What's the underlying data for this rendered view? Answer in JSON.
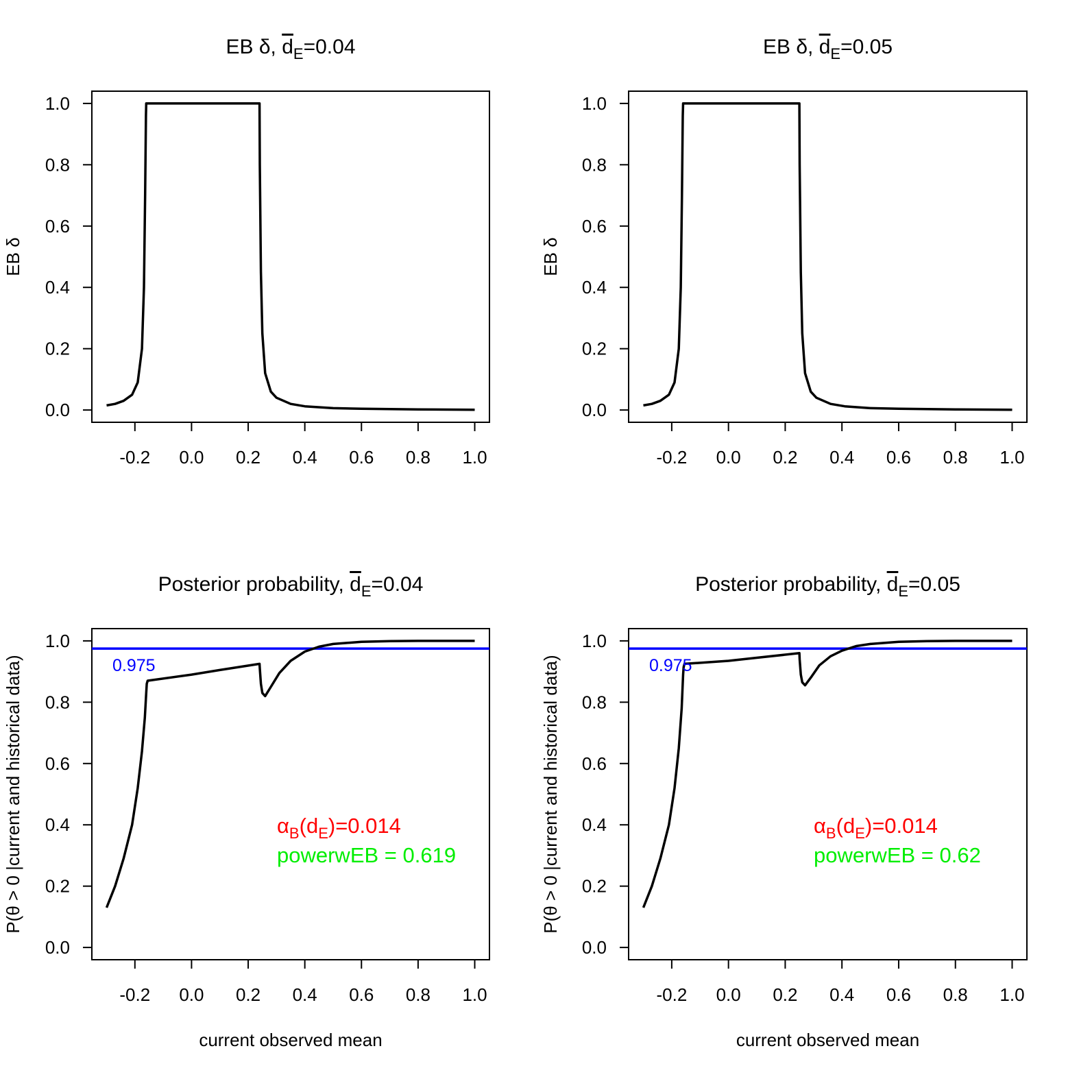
{
  "colors": {
    "curve": "#000000",
    "threshold": "#0000ff",
    "alpha_text": "#ff0000",
    "power_text": "#00ee00"
  },
  "chart_data": [
    {
      "type": "line",
      "title": {
        "prefix": "EB δ, ",
        "dbar": "d",
        "sub": "E",
        "suffix": "=0.04"
      },
      "xlabel": "",
      "ylabel": "EB δ",
      "xlim": [
        -0.3,
        1.0
      ],
      "ylim": [
        0,
        1
      ],
      "xticks": [
        -0.2,
        0.0,
        0.2,
        0.4,
        0.6,
        0.8,
        1.0
      ],
      "xtick_labels": [
        "-0.2",
        "0.0",
        "0.2",
        "0.4",
        "0.6",
        "0.8",
        "1.0"
      ],
      "yticks": [
        0.0,
        0.2,
        0.4,
        0.6,
        0.8,
        1.0
      ],
      "ytick_labels": [
        "0.0",
        "0.2",
        "0.4",
        "0.6",
        "0.8",
        "1.0"
      ],
      "x": [
        -0.3,
        -0.27,
        -0.24,
        -0.21,
        -0.19,
        -0.175,
        -0.168,
        -0.164,
        -0.161,
        -0.16,
        0.24,
        0.241,
        0.245,
        0.25,
        0.26,
        0.28,
        0.3,
        0.35,
        0.4,
        0.5,
        0.6,
        0.8,
        1.0
      ],
      "y": [
        0.015,
        0.02,
        0.03,
        0.05,
        0.09,
        0.2,
        0.4,
        0.7,
        0.96,
        1.0,
        1.0,
        0.8,
        0.45,
        0.25,
        0.12,
        0.06,
        0.04,
        0.02,
        0.012,
        0.006,
        0.004,
        0.002,
        0.001
      ]
    },
    {
      "type": "line",
      "title": {
        "prefix": "EB δ, ",
        "dbar": "d",
        "sub": "E",
        "suffix": "=0.05"
      },
      "xlabel": "",
      "ylabel": "EB δ",
      "xlim": [
        -0.3,
        1.0
      ],
      "ylim": [
        0,
        1
      ],
      "xticks": [
        -0.2,
        0.0,
        0.2,
        0.4,
        0.6,
        0.8,
        1.0
      ],
      "xtick_labels": [
        "-0.2",
        "0.0",
        "0.2",
        "0.4",
        "0.6",
        "0.8",
        "1.0"
      ],
      "yticks": [
        0.0,
        0.2,
        0.4,
        0.6,
        0.8,
        1.0
      ],
      "ytick_labels": [
        "0.0",
        "0.2",
        "0.4",
        "0.6",
        "0.8",
        "1.0"
      ],
      "x": [
        -0.3,
        -0.27,
        -0.24,
        -0.21,
        -0.19,
        -0.175,
        -0.168,
        -0.164,
        -0.161,
        -0.16,
        0.25,
        0.251,
        0.255,
        0.26,
        0.27,
        0.29,
        0.31,
        0.36,
        0.41,
        0.5,
        0.6,
        0.8,
        1.0
      ],
      "y": [
        0.015,
        0.02,
        0.03,
        0.05,
        0.09,
        0.2,
        0.4,
        0.7,
        0.96,
        1.0,
        1.0,
        0.8,
        0.45,
        0.25,
        0.12,
        0.06,
        0.04,
        0.02,
        0.012,
        0.006,
        0.004,
        0.002,
        0.001
      ]
    },
    {
      "type": "line",
      "title": {
        "prefix": "Posterior probability, ",
        "dbar": "d",
        "sub": "E",
        "suffix": "=0.04"
      },
      "xlabel": "current observed mean",
      "ylabel": "P(θ > 0 |current and historical data)",
      "xlim": [
        -0.3,
        1.0
      ],
      "ylim": [
        0,
        1
      ],
      "xticks": [
        -0.2,
        0.0,
        0.2,
        0.4,
        0.6,
        0.8,
        1.0
      ],
      "xtick_labels": [
        "-0.2",
        "0.0",
        "0.2",
        "0.4",
        "0.6",
        "0.8",
        "1.0"
      ],
      "yticks": [
        0.0,
        0.2,
        0.4,
        0.6,
        0.8,
        1.0
      ],
      "ytick_labels": [
        "0.0",
        "0.2",
        "0.4",
        "0.6",
        "0.8",
        "1.0"
      ],
      "x": [
        -0.3,
        -0.27,
        -0.24,
        -0.21,
        -0.19,
        -0.175,
        -0.165,
        -0.16,
        -0.158,
        -0.155,
        0.0,
        0.1,
        0.24,
        0.241,
        0.245,
        0.25,
        0.26,
        0.28,
        0.31,
        0.35,
        0.4,
        0.45,
        0.5,
        0.6,
        0.7,
        0.8,
        1.0
      ],
      "y": [
        0.13,
        0.2,
        0.29,
        0.4,
        0.52,
        0.64,
        0.75,
        0.83,
        0.86,
        0.87,
        0.89,
        0.905,
        0.925,
        0.91,
        0.86,
        0.83,
        0.82,
        0.85,
        0.895,
        0.935,
        0.965,
        0.981,
        0.99,
        0.997,
        0.999,
        1.0,
        1.0
      ]
    },
    {
      "type": "line",
      "title": {
        "prefix": "Posterior probability, ",
        "dbar": "d",
        "sub": "E",
        "suffix": "=0.05"
      },
      "xlabel": "current observed mean",
      "ylabel": "P(θ > 0 |current and historical data)",
      "xlim": [
        -0.3,
        1.0
      ],
      "ylim": [
        0,
        1
      ],
      "xticks": [
        -0.2,
        0.0,
        0.2,
        0.4,
        0.6,
        0.8,
        1.0
      ],
      "xtick_labels": [
        "-0.2",
        "0.0",
        "0.2",
        "0.4",
        "0.6",
        "0.8",
        "1.0"
      ],
      "yticks": [
        0.0,
        0.2,
        0.4,
        0.6,
        0.8,
        1.0
      ],
      "ytick_labels": [
        "0.0",
        "0.2",
        "0.4",
        "0.6",
        "0.8",
        "1.0"
      ],
      "x": [
        -0.3,
        -0.27,
        -0.24,
        -0.21,
        -0.19,
        -0.175,
        -0.165,
        -0.16,
        -0.158,
        -0.155,
        0.0,
        0.1,
        0.25,
        0.251,
        0.255,
        0.26,
        0.27,
        0.29,
        0.32,
        0.36,
        0.4,
        0.45,
        0.5,
        0.6,
        0.7,
        0.8,
        1.0
      ],
      "y": [
        0.13,
        0.2,
        0.29,
        0.4,
        0.52,
        0.65,
        0.78,
        0.89,
        0.915,
        0.925,
        0.935,
        0.945,
        0.96,
        0.94,
        0.89,
        0.865,
        0.855,
        0.88,
        0.92,
        0.95,
        0.968,
        0.983,
        0.99,
        0.997,
        0.999,
        1.0,
        1.0
      ]
    }
  ],
  "panels": [
    {
      "title_prefix": "EB δ, ",
      "title_dbar": "d",
      "title_sub": "E",
      "title_suffix": "=0.04",
      "ylabel": "EB δ",
      "xlabel": ""
    },
    {
      "title_prefix": "EB δ, ",
      "title_dbar": "d",
      "title_sub": "E",
      "title_suffix": "=0.05",
      "ylabel": "EB δ",
      "xlabel": ""
    },
    {
      "title_prefix": "Posterior probability, ",
      "title_dbar": "d",
      "title_sub": "E",
      "title_suffix": "=0.04",
      "ylabel": "P(θ > 0 |current and historical data)",
      "xlabel": "current observed mean",
      "threshold": 0.975,
      "threshold_label": "0.975",
      "alpha_sym": "α",
      "alpha_sub": "B",
      "alpha_open": "(",
      "alpha_d": "d",
      "alpha_dsub": "E",
      "alpha_close": ")",
      "alpha_value": "=0.014",
      "power_text": "powerwEB =  0.619"
    },
    {
      "title_prefix": "Posterior probability, ",
      "title_dbar": "d",
      "title_sub": "E",
      "title_suffix": "=0.05",
      "ylabel": "P(θ > 0 |current and historical data)",
      "xlabel": "current observed mean",
      "threshold": 0.975,
      "threshold_label": "0.975",
      "alpha_sym": "α",
      "alpha_sub": "B",
      "alpha_open": "(",
      "alpha_d": "d",
      "alpha_dsub": "E",
      "alpha_close": ")",
      "alpha_value": "=0.014",
      "power_text": "powerwEB =  0.62"
    }
  ]
}
